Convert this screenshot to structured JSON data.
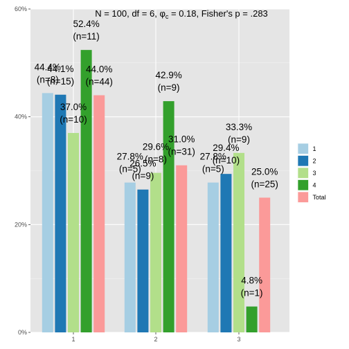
{
  "chart_data": {
    "type": "bar",
    "subtitle": "N = 100,  df = 6,  φc = 0.18,  Fisher's p = .283",
    "subtitle_parts": {
      "stats": "N = 100,  df = 6,  ",
      "phi": "φ",
      "phi_sub": "c",
      "rest": " = 0.18,  Fisher's p = .283"
    },
    "categories": [
      "1",
      "2",
      "3"
    ],
    "ylim": [
      0,
      0.6
    ],
    "yticks": [
      0,
      0.2,
      0.4,
      0.6
    ],
    "ytick_labels": [
      "0%",
      "20%",
      "40%",
      "60%"
    ],
    "grid": true,
    "legend_position": "right",
    "series": [
      {
        "name": "1",
        "color": "#A6CEE3",
        "values": [
          0.444,
          0.278,
          0.278
        ],
        "pct_labels": [
          "44.4%",
          "27.8%",
          "27.8%"
        ],
        "n_labels": [
          "(n=8)",
          "(n=5)",
          "(n=5)"
        ]
      },
      {
        "name": "2",
        "color": "#1F78B4",
        "values": [
          0.441,
          0.265,
          0.294
        ],
        "pct_labels": [
          "44.1%",
          "26.5%",
          "29.4%"
        ],
        "n_labels": [
          "(n=15)",
          "(n=9)",
          "(n=10)"
        ]
      },
      {
        "name": "3",
        "color": "#B2DF8A",
        "values": [
          0.37,
          0.296,
          0.333
        ],
        "pct_labels": [
          "37.0%",
          "29.6%",
          "33.3%"
        ],
        "n_labels": [
          "(n=10)",
          "(n=8)",
          "(n=9)"
        ]
      },
      {
        "name": "4",
        "color": "#33A02C",
        "values": [
          0.524,
          0.429,
          0.048
        ],
        "pct_labels": [
          "52.4%",
          "42.9%",
          "4.8%"
        ],
        "n_labels": [
          "(n=11)",
          "(n=9)",
          "(n=1)"
        ]
      },
      {
        "name": "Total",
        "color": "#FB9A99",
        "values": [
          0.44,
          0.31,
          0.25
        ],
        "pct_labels": [
          "44.0%",
          "31.0%",
          "25.0%"
        ],
        "n_labels": [
          "(n=44)",
          "(n=31)",
          "(n=25)"
        ]
      }
    ],
    "colors": {
      "panel_background": "#E5E5E5",
      "grid_major": "#FFFFFF",
      "grid_minor": "#F2F2F2"
    }
  }
}
